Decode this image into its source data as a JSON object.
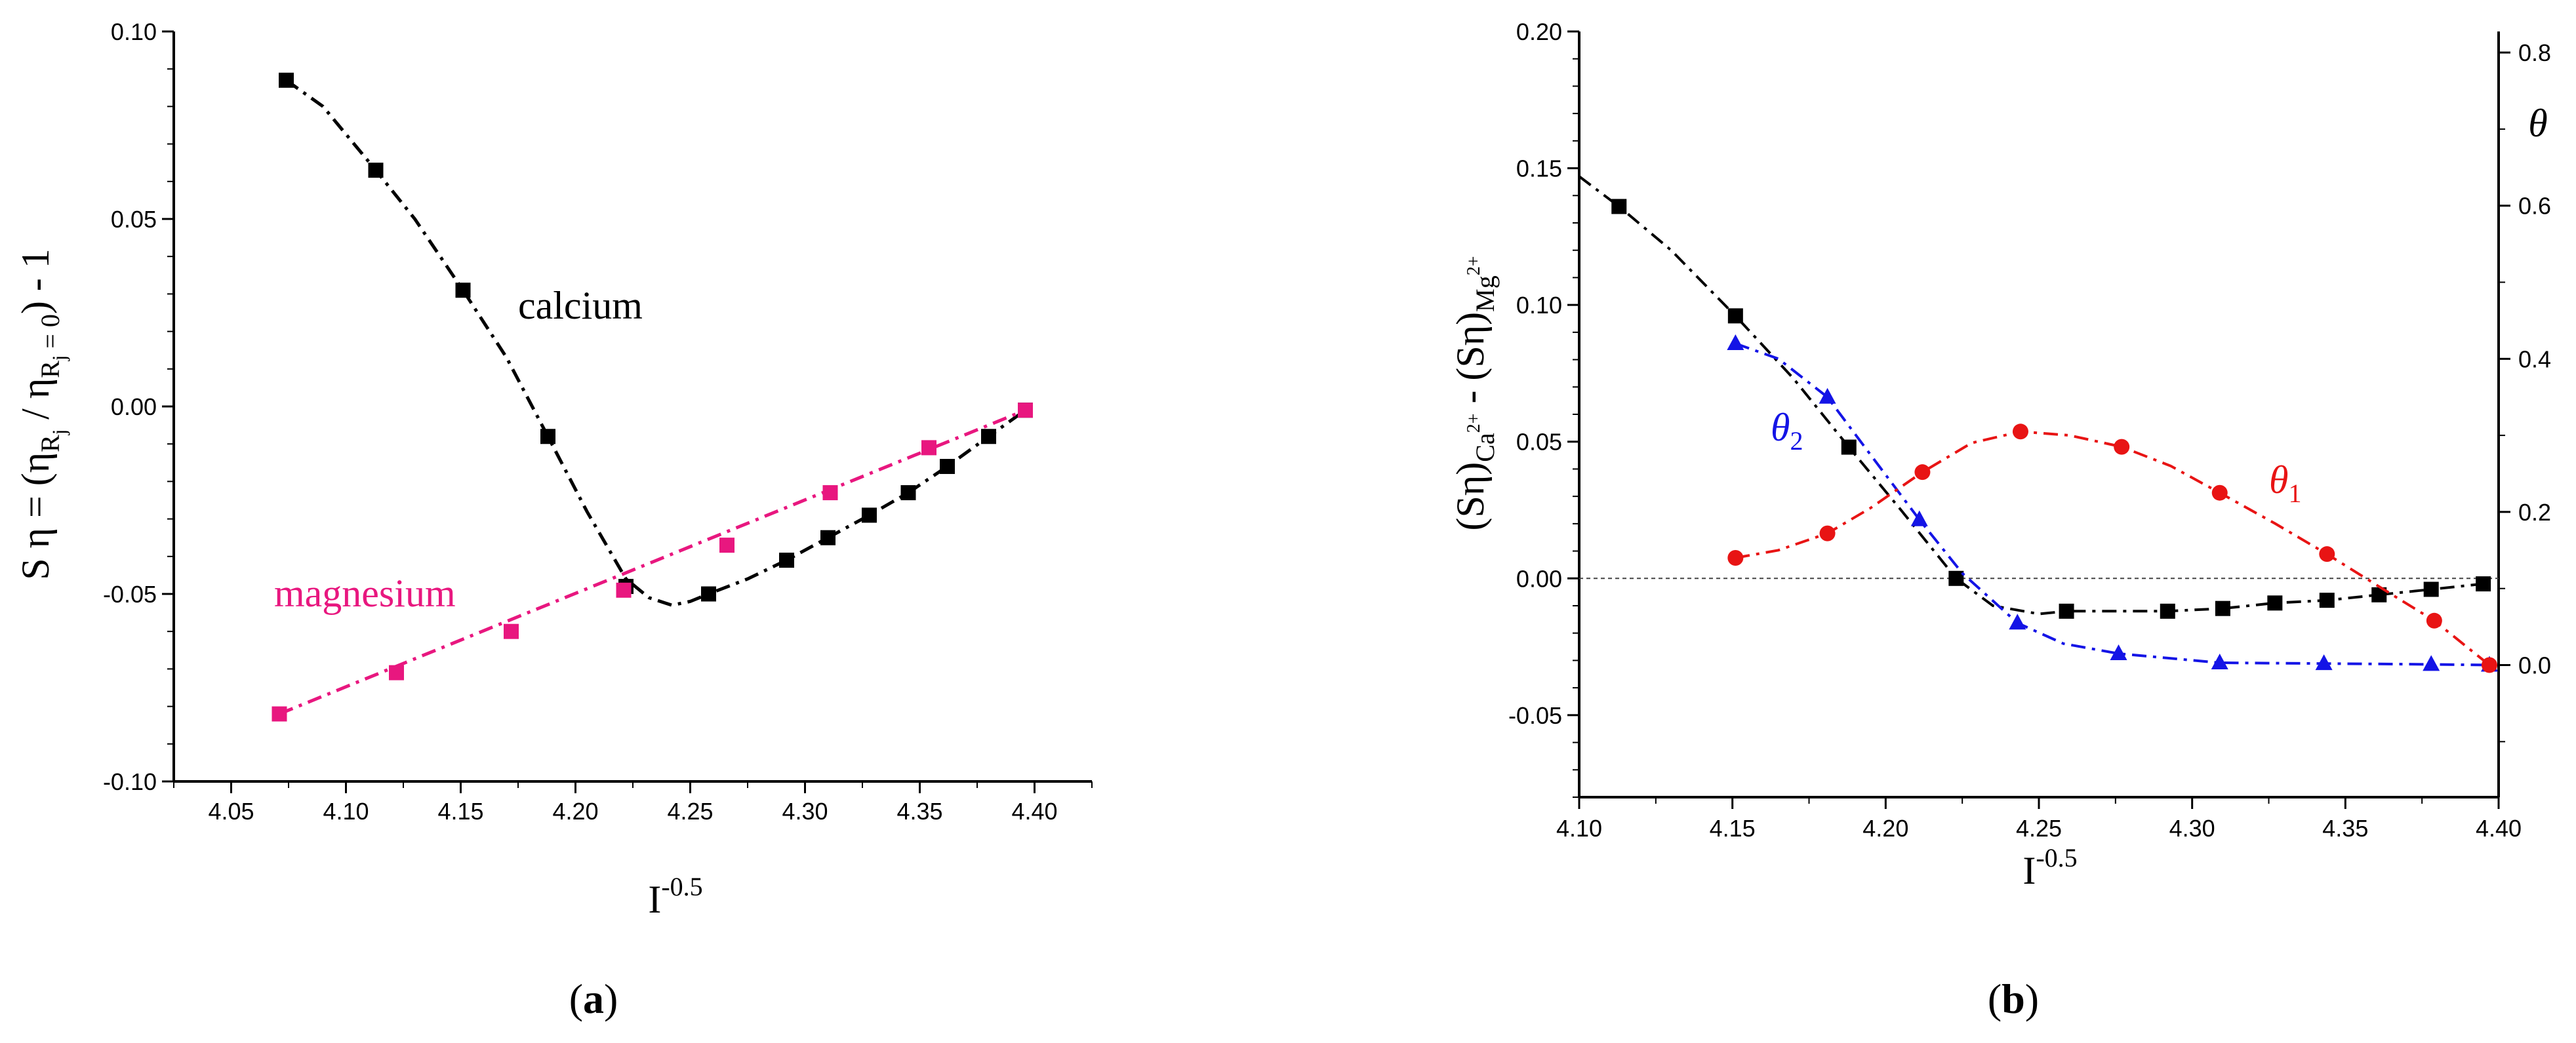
{
  "chart_data": [
    {
      "type": "line",
      "panel_label": "a",
      "xlabel": "I",
      "xlabel_sup": "-0.5",
      "ylabel": {
        "prefix": "S η = (η",
        "sub1": "R",
        "subsub1": "j",
        "mid": " / η",
        "sub2": "R",
        "subsub2": "j",
        "sub2_tail": " = 0",
        "suffix": ") - 1"
      },
      "xlim": [
        4.025,
        4.425
      ],
      "ylim": [
        -0.1,
        0.1
      ],
      "xticks": [
        "4.05",
        "4.10",
        "4.15",
        "4.20",
        "4.25",
        "4.30",
        "4.35",
        "4.40"
      ],
      "xtick_values": [
        4.05,
        4.1,
        4.15,
        4.2,
        4.25,
        4.3,
        4.35,
        4.4
      ],
      "yticks": [
        "-0.10",
        "-0.05",
        "0.00",
        "0.05",
        "0.10"
      ],
      "ytick_values": [
        -0.1,
        -0.05,
        0.0,
        0.05,
        0.1
      ],
      "series": [
        {
          "name": "calcium",
          "label": "calcium",
          "color": "#000000",
          "marker": "square",
          "points": [
            [
              4.074,
              0.087
            ],
            [
              4.113,
              0.063
            ],
            [
              4.151,
              0.031
            ],
            [
              4.188,
              -0.008
            ],
            [
              4.222,
              -0.048
            ],
            [
              4.258,
              -0.05
            ],
            [
              4.292,
              -0.041
            ],
            [
              4.31,
              -0.035
            ],
            [
              4.328,
              -0.029
            ],
            [
              4.345,
              -0.023
            ],
            [
              4.362,
              -0.016
            ],
            [
              4.38,
              -0.008
            ],
            [
              4.396,
              -0.001
            ]
          ],
          "curve": [
            [
              4.074,
              0.087
            ],
            [
              4.09,
              0.08
            ],
            [
              4.113,
              0.063
            ],
            [
              4.13,
              0.05
            ],
            [
              4.151,
              0.031
            ],
            [
              4.17,
              0.013
            ],
            [
              4.188,
              -0.008
            ],
            [
              4.205,
              -0.028
            ],
            [
              4.222,
              -0.046
            ],
            [
              4.232,
              -0.051
            ],
            [
              4.242,
              -0.053
            ],
            [
              4.25,
              -0.052
            ],
            [
              4.258,
              -0.05
            ],
            [
              4.275,
              -0.046
            ],
            [
              4.292,
              -0.041
            ],
            [
              4.31,
              -0.035
            ],
            [
              4.328,
              -0.029
            ],
            [
              4.345,
              -0.023
            ],
            [
              4.362,
              -0.016
            ],
            [
              4.38,
              -0.008
            ],
            [
              4.396,
              -0.001
            ]
          ]
        },
        {
          "name": "magnesium",
          "label": "magnesium",
          "color": "#e8177f",
          "marker": "square",
          "points": [
            [
              4.071,
              -0.082
            ],
            [
              4.122,
              -0.071
            ],
            [
              4.172,
              -0.06
            ],
            [
              4.221,
              -0.049
            ],
            [
              4.266,
              -0.037
            ],
            [
              4.311,
              -0.023
            ],
            [
              4.354,
              -0.011
            ],
            [
              4.396,
              -0.001
            ]
          ],
          "curve": [
            [
              4.071,
              -0.082
            ],
            [
              4.396,
              -0.001
            ]
          ]
        }
      ]
    },
    {
      "type": "line",
      "panel_label": "b",
      "xlabel": "I",
      "xlabel_sup": "-0.5",
      "ylabel": {
        "prefix": "(Sη)",
        "sub1": "Ca",
        "sup1": "2+",
        "mid": " - (Sη)",
        "sub2": "Mg",
        "sup2": "2+"
      },
      "y2label": "θ",
      "xlim": [
        4.1,
        4.4
      ],
      "ylim": [
        -0.08,
        0.2
      ],
      "y2lim": [
        -0.1725,
        0.8275
      ],
      "xticks": [
        "4.10",
        "4.15",
        "4.20",
        "4.25",
        "4.30",
        "4.35",
        "4.40"
      ],
      "xtick_values": [
        4.1,
        4.15,
        4.2,
        4.25,
        4.3,
        4.35,
        4.4
      ],
      "yticks": [
        "-0.05",
        "0.00",
        "0.05",
        "0.10",
        "0.15",
        "0.20"
      ],
      "ytick_values": [
        -0.05,
        0.0,
        0.05,
        0.1,
        0.15,
        0.2
      ],
      "y2ticks": [
        "0.0",
        "0.2",
        "0.4",
        "0.6",
        "0.8"
      ],
      "y2tick_values": [
        0.0,
        0.2,
        0.4,
        0.6,
        0.8
      ],
      "zero_line": true,
      "series": [
        {
          "name": "difference",
          "label": "",
          "color": "#000000",
          "marker": "square",
          "axis": "left",
          "points": [
            [
              4.113,
              0.136
            ],
            [
              4.151,
              0.096
            ],
            [
              4.188,
              0.048
            ],
            [
              4.223,
              0.0
            ],
            [
              4.259,
              -0.012
            ],
            [
              4.292,
              -0.012
            ],
            [
              4.31,
              -0.011
            ],
            [
              4.327,
              -0.009
            ],
            [
              4.344,
              -0.008
            ],
            [
              4.361,
              -0.006
            ],
            [
              4.378,
              -0.004
            ],
            [
              4.395,
              -0.002
            ]
          ],
          "curve": [
            [
              4.1,
              0.147
            ],
            [
              4.113,
              0.136
            ],
            [
              4.13,
              0.12
            ],
            [
              4.151,
              0.096
            ],
            [
              4.17,
              0.073
            ],
            [
              4.188,
              0.048
            ],
            [
              4.205,
              0.025
            ],
            [
              4.223,
              0.0
            ],
            [
              4.235,
              -0.01
            ],
            [
              4.25,
              -0.013
            ],
            [
              4.259,
              -0.012
            ],
            [
              4.292,
              -0.012
            ],
            [
              4.31,
              -0.011
            ],
            [
              4.327,
              -0.009
            ],
            [
              4.344,
              -0.008
            ],
            [
              4.361,
              -0.006
            ],
            [
              4.378,
              -0.004
            ],
            [
              4.395,
              -0.002
            ]
          ]
        },
        {
          "name": "theta2",
          "label": "θ",
          "label_sub": "2",
          "color": "#1414e6",
          "marker": "triangle",
          "axis": "right",
          "points": [
            [
              4.151,
              0.42
            ],
            [
              4.181,
              0.35
            ],
            [
              4.211,
              0.19
            ],
            [
              4.243,
              0.055
            ],
            [
              4.276,
              0.015
            ],
            [
              4.309,
              0.003
            ],
            [
              4.343,
              0.002
            ],
            [
              4.378,
              0.001
            ],
            [
              4.397,
              0.0
            ]
          ],
          "curve": [
            [
              4.151,
              0.42
            ],
            [
              4.165,
              0.4
            ],
            [
              4.181,
              0.35
            ],
            [
              4.195,
              0.275
            ],
            [
              4.211,
              0.19
            ],
            [
              4.225,
              0.12
            ],
            [
              4.243,
              0.055
            ],
            [
              4.258,
              0.028
            ],
            [
              4.276,
              0.015
            ],
            [
              4.309,
              0.003
            ],
            [
              4.343,
              0.002
            ],
            [
              4.378,
              0.001
            ],
            [
              4.397,
              0.0
            ]
          ]
        },
        {
          "name": "theta1",
          "label": "θ",
          "label_sub": "1",
          "color": "#e81414",
          "marker": "circle",
          "axis": "right",
          "points": [
            [
              4.151,
              0.14
            ],
            [
              4.181,
              0.172
            ],
            [
              4.212,
              0.252
            ],
            [
              4.244,
              0.305
            ],
            [
              4.277,
              0.285
            ],
            [
              4.309,
              0.225
            ],
            [
              4.344,
              0.145
            ],
            [
              4.379,
              0.058
            ],
            [
              4.397,
              0.0
            ]
          ],
          "curve": [
            [
              4.151,
              0.14
            ],
            [
              4.165,
              0.15
            ],
            [
              4.181,
              0.172
            ],
            [
              4.195,
              0.205
            ],
            [
              4.212,
              0.252
            ],
            [
              4.228,
              0.29
            ],
            [
              4.244,
              0.305
            ],
            [
              4.26,
              0.3
            ],
            [
              4.277,
              0.285
            ],
            [
              4.293,
              0.26
            ],
            [
              4.309,
              0.225
            ],
            [
              4.327,
              0.185
            ],
            [
              4.344,
              0.145
            ],
            [
              4.362,
              0.1
            ],
            [
              4.379,
              0.058
            ],
            [
              4.397,
              0.0
            ]
          ]
        }
      ]
    }
  ]
}
